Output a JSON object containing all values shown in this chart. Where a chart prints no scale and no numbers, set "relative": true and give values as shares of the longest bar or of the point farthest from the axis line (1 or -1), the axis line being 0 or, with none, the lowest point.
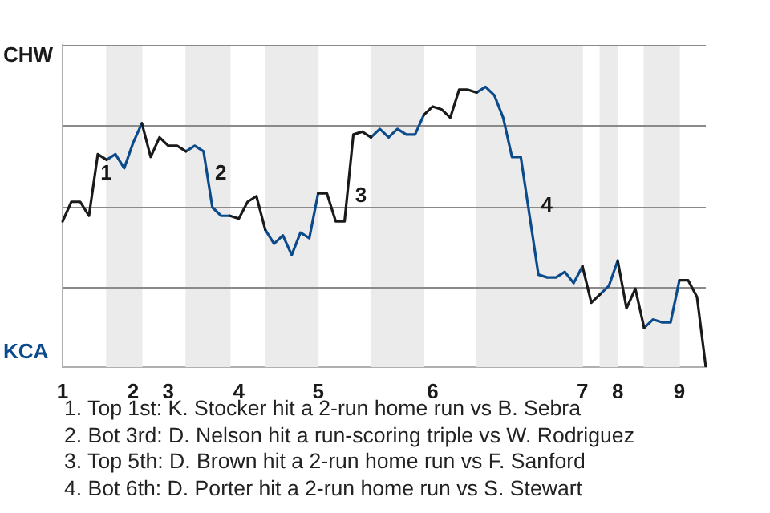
{
  "chart_data": {
    "type": "line",
    "relative": true,
    "categories": [
      "1",
      null,
      null,
      null,
      null,
      null,
      null,
      null,
      "2",
      null,
      null,
      null,
      "3",
      null,
      null,
      null,
      null,
      null,
      null,
      null,
      "4",
      null,
      null,
      null,
      null,
      null,
      null,
      null,
      null,
      "5",
      null,
      null,
      null,
      null,
      null,
      null,
      null,
      null,
      null,
      null,
      null,
      null,
      "6",
      null,
      null,
      null,
      null,
      null,
      null,
      null,
      null,
      null,
      null,
      null,
      null,
      null,
      null,
      null,
      null,
      "7",
      null,
      null,
      null,
      "8",
      null,
      null,
      null,
      null,
      null,
      null,
      "9",
      null,
      null,
      null
    ],
    "series": [
      {
        "color": "#1a1a1a",
        "values": [
          0.52,
          0.59,
          0.59,
          0.54,
          0.76,
          0.74,
          null,
          null,
          null,
          0.87,
          0.75,
          0.82,
          0.79,
          0.79,
          0.77,
          null,
          null,
          null,
          null,
          0.54,
          0.53,
          0.59,
          0.61,
          0.49,
          null,
          null,
          null,
          null,
          null,
          0.62,
          0.62,
          0.52,
          0.52,
          0.83,
          0.84,
          0.82,
          null,
          null,
          null,
          null,
          null,
          0.9,
          0.93,
          0.92,
          0.89,
          0.99,
          0.99,
          0.98,
          null,
          null,
          null,
          null,
          null,
          null,
          null,
          null,
          null,
          null,
          null,
          0.36,
          0.23,
          0.26,
          null,
          0.38,
          0.21,
          0.28,
          0.14,
          null,
          null,
          null,
          0.31,
          0.31,
          0.25,
          0
        ]
      },
      {
        "color": "#0b4a8b",
        "values": [
          null,
          null,
          null,
          null,
          null,
          0.74,
          0.76,
          0.71,
          0.8,
          0.87,
          null,
          null,
          null,
          null,
          0.77,
          0.79,
          0.77,
          0.57,
          0.54,
          0.54,
          null,
          null,
          null,
          0.49,
          0.44,
          0.47,
          0.4,
          0.48,
          0.46,
          0.62,
          null,
          null,
          null,
          null,
          null,
          0.82,
          0.85,
          0.82,
          0.85,
          0.83,
          0.83,
          0.9,
          null,
          null,
          null,
          null,
          null,
          0.98,
          1,
          0.97,
          0.89,
          0.75,
          0.75,
          0.54,
          0.33,
          0.32,
          0.32,
          0.34,
          0.3,
          0.36,
          null,
          0.26,
          0.29,
          0.38,
          null,
          null,
          0.14,
          0.17,
          0.16,
          0.16,
          0.31,
          null,
          null,
          null
        ]
      }
    ],
    "grid": "y",
    "legend": false,
    "marker": "none",
    "annotations": [
      "CHW",
      "KCA",
      "1",
      "2",
      "3",
      "4",
      "1. Top 1st: K. Stocker hit a 2-run home run vs B. Sebra",
      "2. Bot 3rd: D. Nelson hit a run-scoring triple vs W. Rodriguez",
      "3. Top 5th: D. Brown hit a 2-run home run vs F. Sanford",
      "4. Bot 6th: D. Porter hit a 2-run home run vs S. Stewart"
    ]
  }
}
